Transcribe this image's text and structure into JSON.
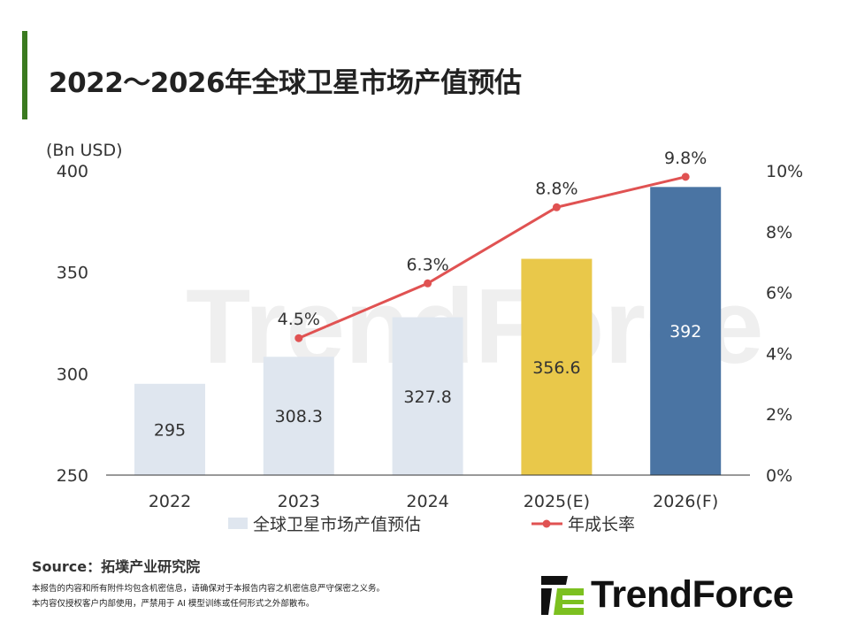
{
  "title": "2022～2026年全球卫星市场产值预估",
  "chart_data": {
    "type": "bar+line",
    "categories": [
      "2022",
      "2023",
      "2024",
      "2025(E)",
      "2026(F)"
    ],
    "ylabel": "(Bn USD)",
    "ylim": [
      250,
      400
    ],
    "yticks": [
      "250",
      "300",
      "350",
      "400"
    ],
    "y2lim": [
      0,
      10
    ],
    "y2ticks": [
      "0%",
      "2%",
      "4%",
      "6%",
      "8%",
      "10%"
    ],
    "series": [
      {
        "name": "全球卫星市场产值预估",
        "type": "bar",
        "values": [
          295,
          308.3,
          327.8,
          356.6,
          392
        ],
        "labels": [
          "295",
          "308.3",
          "327.8",
          "356.6",
          "392"
        ],
        "colors": [
          "#dfe6ef",
          "#dfe6ef",
          "#dfe6ef",
          "#e9c84a",
          "#4a74a3"
        ]
      },
      {
        "name": "年成长率",
        "type": "line",
        "axis": "right",
        "values": [
          null,
          4.5,
          6.3,
          8.8,
          9.8
        ],
        "labels": [
          "",
          "4.5%",
          "6.3%",
          "8.8%",
          "9.8%"
        ],
        "color": "#e05252"
      }
    ],
    "legend": "bottom"
  },
  "source": "Source：拓墣产业研究院",
  "notes": [
    "本报告的内容和所有附件均包含机密信息，请确保对于本报告内容之机密信息严守保密之义务。",
    "本内容仅授权客户内部使用，严禁用于 AI 模型训练或任何形式之外部散布。"
  ],
  "logo": "TrendForce",
  "watermark": "TrendForce"
}
